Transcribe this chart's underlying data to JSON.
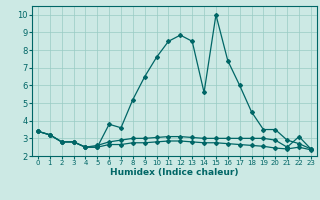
{
  "title": "",
  "xlabel": "Humidex (Indice chaleur)",
  "xlim": [
    -0.5,
    23.5
  ],
  "ylim": [
    2,
    10.5
  ],
  "yticks": [
    2,
    3,
    4,
    5,
    6,
    7,
    8,
    9,
    10
  ],
  "xticks": [
    0,
    1,
    2,
    3,
    4,
    5,
    6,
    7,
    8,
    9,
    10,
    11,
    12,
    13,
    14,
    15,
    16,
    17,
    18,
    19,
    20,
    21,
    22,
    23
  ],
  "bg_color": "#cce9e4",
  "grid_color": "#99ccc4",
  "line_color": "#006666",
  "series": [
    [
      3.4,
      3.2,
      2.8,
      2.8,
      2.5,
      2.5,
      3.8,
      3.6,
      5.2,
      6.5,
      7.6,
      8.5,
      8.85,
      8.5,
      5.6,
      10.0,
      7.4,
      6.0,
      4.5,
      3.5,
      3.5,
      2.9,
      2.7,
      2.4
    ],
    [
      3.4,
      3.2,
      2.8,
      2.8,
      2.5,
      2.6,
      2.8,
      2.9,
      3.0,
      3.0,
      3.05,
      3.1,
      3.1,
      3.05,
      3.0,
      3.0,
      3.0,
      3.0,
      3.0,
      3.0,
      2.9,
      2.5,
      3.1,
      2.4
    ],
    [
      3.4,
      3.2,
      2.8,
      2.8,
      2.5,
      2.5,
      2.65,
      2.65,
      2.75,
      2.75,
      2.8,
      2.85,
      2.85,
      2.8,
      2.75,
      2.75,
      2.7,
      2.65,
      2.6,
      2.55,
      2.45,
      2.4,
      2.5,
      2.35
    ]
  ]
}
